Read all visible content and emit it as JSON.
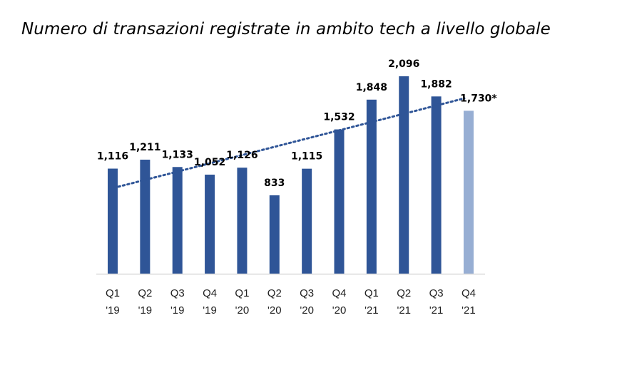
{
  "chart_data": {
    "type": "bar",
    "title": "Numero di transazioni registrate in ambito tech a livello globale",
    "categories": [
      [
        "Q1",
        "'19"
      ],
      [
        "Q2",
        "'19"
      ],
      [
        "Q3",
        "'19"
      ],
      [
        "Q4",
        "'19"
      ],
      [
        "Q1",
        "'20"
      ],
      [
        "Q2",
        "'20"
      ],
      [
        "Q3",
        "'20"
      ],
      [
        "Q4",
        "'20"
      ],
      [
        "Q1",
        "'21"
      ],
      [
        "Q2",
        "'21"
      ],
      [
        "Q3",
        "'21"
      ],
      [
        "Q4",
        "'21"
      ]
    ],
    "values": [
      1116,
      1211,
      1133,
      1052,
      1126,
      833,
      1115,
      1532,
      1848,
      2096,
      1882,
      1730
    ],
    "value_labels": [
      "1,116",
      "1,211",
      "1,133",
      "1,052",
      "1,126",
      "833",
      "1,115",
      "1,532",
      "1,848",
      "2,096",
      "1,882",
      "1,730*"
    ],
    "estimated": [
      false,
      false,
      false,
      false,
      false,
      false,
      false,
      false,
      false,
      false,
      false,
      true
    ],
    "ylim": [
      0,
      2096
    ],
    "trendline": {
      "style": "dotted",
      "linear": true
    },
    "grid": false,
    "colors": {
      "bar": "#2f5597",
      "bar_estimated": "#97aed3",
      "trendline": "#2f5597",
      "axis": "#d9d9d9"
    }
  }
}
